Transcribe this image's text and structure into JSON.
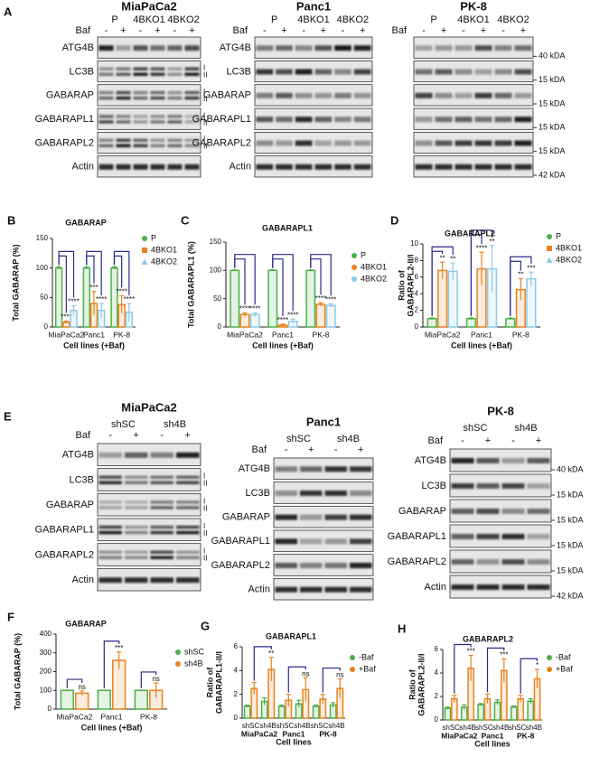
{
  "blot_panels": [
    {
      "letter": "A",
      "blots": [
        {
          "title": "MiaPaCa2",
          "treatment_label": "Baf",
          "treatments": [
            "-",
            "+",
            "-",
            "+",
            "-",
            "+"
          ],
          "groups": [
            "P",
            "4BKO1",
            "4BKO2"
          ],
          "rows": [
            {
              "label": "ATG4B"
            },
            {
              "label": "LC3B",
              "forms": [
                "I",
                "II"
              ]
            },
            {
              "label": "GABARAP",
              "forms": [
                "I",
                "II"
              ]
            },
            {
              "label": "GABARAPL1",
              "forms": [
                "I",
                "II"
              ]
            },
            {
              "label": "GABARAPL2",
              "forms": [
                "I",
                "II"
              ]
            },
            {
              "label": "Actin"
            }
          ]
        },
        {
          "title": "Panc1",
          "treatment_label": "Baf",
          "treatments": [
            "-",
            "+",
            "-",
            "+",
            "-",
            "+"
          ],
          "groups": [
            "P",
            "4BKO1",
            "4BKO2"
          ],
          "rows": [
            {
              "label": "ATG4B"
            },
            {
              "label": "LC3B"
            },
            {
              "label": "GABARAP"
            },
            {
              "label": "GABARAPL1"
            },
            {
              "label": "GABARAPL2"
            },
            {
              "label": "Actin"
            }
          ]
        },
        {
          "title": "PK-8",
          "treatment_label": "Baf",
          "treatments": [
            "-",
            "+",
            "-",
            "+",
            "-",
            "+"
          ],
          "groups": [
            "P",
            "4BKO1",
            "4BKO2"
          ],
          "rows": [
            {
              "size": "40 kDA"
            },
            {
              "size": "15 kDA"
            },
            {
              "size": "15 kDA"
            },
            {
              "size": "15 kDA"
            },
            {
              "size": "15 kDA"
            },
            {
              "size": "42 kDA"
            }
          ]
        }
      ]
    },
    {
      "letter": "E",
      "blots": [
        {
          "title": "MiaPaCa2",
          "treatment_label": "Baf",
          "treatments": [
            "-",
            "+",
            "-",
            "+"
          ],
          "groups": [
            "shSC",
            "sh4B"
          ],
          "rows": [
            {
              "label": "ATG4B"
            },
            {
              "label": "LC3B",
              "forms": [
                "I",
                "II"
              ]
            },
            {
              "label": "GABARAP",
              "forms": [
                "I",
                "II"
              ]
            },
            {
              "label": "GABARAPL1",
              "forms": [
                "I",
                "II"
              ]
            },
            {
              "label": "GABARAPL2",
              "forms": [
                "I",
                "II"
              ]
            },
            {
              "label": "Actin"
            }
          ]
        },
        {
          "title": "Panc1",
          "treatment_label": "Baf",
          "treatments": [
            "-",
            "+",
            "-",
            "+"
          ],
          "groups": [
            "shSC",
            "sh4B"
          ],
          "rows": [
            {
              "label": "ATG4B"
            },
            {
              "label": "LC3B"
            },
            {
              "label": "GABARAP"
            },
            {
              "label": "GABARAPL1"
            },
            {
              "label": "GABARAPL2"
            },
            {
              "label": "Actin"
            }
          ]
        },
        {
          "title": "PK-8",
          "treatment_label": "Baf",
          "treatments": [
            "-",
            "+",
            "-",
            "+"
          ],
          "groups": [
            "shSC",
            "sh4B"
          ],
          "rows": [
            {
              "label": "ATG4B",
              "size": "40 kDA"
            },
            {
              "label": "LC3B",
              "size": "15 kDA"
            },
            {
              "label": "GABARAP",
              "size": "15 kDA"
            },
            {
              "label": "GABARAPL1",
              "size": "15 kDA"
            },
            {
              "label": "GABARAPL2",
              "size": "15 kDA"
            },
            {
              "label": "Actin",
              "size": "42 kDA"
            }
          ]
        }
      ]
    }
  ],
  "chart_data": [
    {
      "type": "bar",
      "panel": "B",
      "title": "GABARAP",
      "ylabel": [
        "Total GABARAP (%)"
      ],
      "xlabel": "Cell lines (+Baf)",
      "categories": [
        "MiaPaCa2",
        "Panc1",
        "PK-8"
      ],
      "ylim": [
        0,
        150
      ],
      "yticks": [
        0,
        50,
        100,
        150
      ],
      "series": [
        {
          "name": "P",
          "color": "#4daf4a",
          "marker": "circle",
          "values": [
            100,
            100,
            100
          ],
          "errors": [
            2,
            2,
            2
          ]
        },
        {
          "name": "4BKO1",
          "color": "#e8821e",
          "marker": "square",
          "values": [
            8,
            40,
            38
          ],
          "errors": [
            2,
            20,
            15
          ],
          "sig": [
            "****",
            "***",
            "****"
          ]
        },
        {
          "name": "4BKO2",
          "color": "#8ecae6",
          "marker": "triangle",
          "values": [
            28,
            28,
            25
          ],
          "errors": [
            8,
            12,
            15
          ],
          "sig": [
            "****",
            "****",
            "****"
          ]
        }
      ]
    },
    {
      "type": "bar",
      "panel": "C",
      "title": "GABARAPL1",
      "ylabel": [
        "Total GABARAPL1 (%)"
      ],
      "xlabel": "Cell lines (+Baf)",
      "categories": [
        "MiaPaCa2",
        "Panc1",
        "PK-8"
      ],
      "ylim": [
        0,
        150
      ],
      "yticks": [
        0,
        50,
        100,
        150
      ],
      "series": [
        {
          "name": "P",
          "color": "#4daf4a",
          "marker": "circle",
          "values": [
            100,
            100,
            100
          ],
          "errors": [
            1,
            1,
            1
          ]
        },
        {
          "name": "4BKO1",
          "color": "#e8821e",
          "marker": "circle",
          "values": [
            22,
            3,
            40
          ],
          "errors": [
            3,
            2,
            3
          ],
          "sig": [
            "****",
            "****",
            "****"
          ]
        },
        {
          "name": "4BKO2",
          "color": "#8ecae6",
          "marker": "circle",
          "values": [
            22,
            10,
            38
          ],
          "errors": [
            3,
            4,
            3
          ],
          "sig": [
            "****",
            "****",
            "****"
          ]
        }
      ]
    },
    {
      "type": "bar",
      "panel": "D",
      "title": "GABARAPL2",
      "ylabel": [
        "Ratio of",
        "GABARAPL2-II/I"
      ],
      "xlabel": "Cell lines (+Baf)",
      "categories": [
        "MiaPaCa2",
        "Panc1",
        "PK-8"
      ],
      "ylim": [
        0,
        10
      ],
      "yticks": [
        0,
        2,
        4,
        6,
        8,
        10
      ],
      "series": [
        {
          "name": "P",
          "color": "#4daf4a",
          "marker": "circle",
          "values": [
            1,
            1,
            1
          ],
          "errors": [
            0.1,
            0.1,
            0.1
          ]
        },
        {
          "name": "4BKO1",
          "color": "#e8821e",
          "marker": "square",
          "values": [
            6.8,
            7,
            4.5
          ],
          "errors": [
            1,
            2,
            1.3
          ],
          "sig": [
            "**",
            "****",
            "**"
          ]
        },
        {
          "name": "4BKO2",
          "color": "#8ecae6",
          "marker": "triangle",
          "values": [
            6.7,
            7,
            5.8
          ],
          "errors": [
            1,
            2.8,
            0.8
          ],
          "sig": [
            "**",
            "**",
            "***"
          ]
        }
      ]
    },
    {
      "type": "bar",
      "panel": "F",
      "title": "GABARAP",
      "ylabel": [
        "Total GABARAP (%)"
      ],
      "xlabel": "Cell lines (+Baf)",
      "categories": [
        "MiaPaCa2",
        "Panc1",
        "PK-8"
      ],
      "ylim": [
        0,
        400
      ],
      "yticks": [
        0,
        100,
        200,
        300,
        400
      ],
      "series": [
        {
          "name": "shSC",
          "color": "#4daf4a",
          "marker": "circle",
          "values": [
            100,
            100,
            100
          ],
          "errors": [
            1,
            1,
            1
          ]
        },
        {
          "name": "sh4B",
          "color": "#e8821e",
          "marker": "circle",
          "values": [
            85,
            260,
            100
          ],
          "errors": [
            12,
            45,
            40
          ],
          "sig": [
            "ns",
            "***",
            "ns"
          ]
        }
      ]
    },
    {
      "type": "bar",
      "panel": "G",
      "title": "GABARAPL1",
      "ylabel": [
        "Ratio of",
        "GABARAPL1-II/I"
      ],
      "xlabel": "Cell lines",
      "categories": [
        "shSC",
        "sh4B",
        "shSC",
        "sh4B",
        "shSC",
        "sh4B"
      ],
      "groups": [
        "MiaPaCa2",
        "Panc1",
        "PK-8"
      ],
      "ylim": [
        0,
        6
      ],
      "yticks": [
        0,
        2,
        4,
        6
      ],
      "series": [
        {
          "name": "-Baf",
          "color": "#4daf4a",
          "marker": "circle",
          "values": [
            1,
            1.4,
            1,
            1.2,
            1,
            1.1
          ],
          "errors": [
            0.1,
            0.3,
            0.1,
            0.3,
            0.1,
            0.2
          ]
        },
        {
          "name": "+Baf",
          "color": "#e8821e",
          "marker": "circle",
          "values": [
            2.5,
            4.1,
            1.5,
            2.4,
            1.6,
            2.5
          ],
          "errors": [
            0.5,
            1,
            0.5,
            1,
            0.4,
            0.8
          ],
          "sig": [
            null,
            "**",
            null,
            "ns",
            null,
            "ns"
          ]
        }
      ]
    },
    {
      "type": "bar",
      "panel": "H",
      "title": "GABARAPL2",
      "ylabel": [
        "Ratio of",
        "GABARAPL2-II/I"
      ],
      "xlabel": "Cell lines",
      "categories": [
        "shSC",
        "sh4B",
        "shSC",
        "sh4B",
        "shSC",
        "sh4B"
      ],
      "groups": [
        "MiaPaCa2",
        "Panc1",
        "PK-8"
      ],
      "ylim": [
        0,
        6
      ],
      "yticks": [
        0,
        2,
        4,
        6
      ],
      "series": [
        {
          "name": "-Baf",
          "color": "#4daf4a",
          "marker": "circle",
          "values": [
            1,
            1.1,
            1.3,
            1.5,
            1.1,
            1.6
          ],
          "errors": [
            0.1,
            0.2,
            0.1,
            0.2,
            0.1,
            0.2
          ]
        },
        {
          "name": "+Baf",
          "color": "#e8821e",
          "marker": "circle",
          "values": [
            1.8,
            4.4,
            1.8,
            4.2,
            1.8,
            3.5
          ],
          "errors": [
            0.3,
            1.1,
            0.4,
            1,
            0.3,
            0.8
          ],
          "sig": [
            null,
            "***",
            null,
            "***",
            null,
            "*"
          ]
        }
      ]
    }
  ]
}
